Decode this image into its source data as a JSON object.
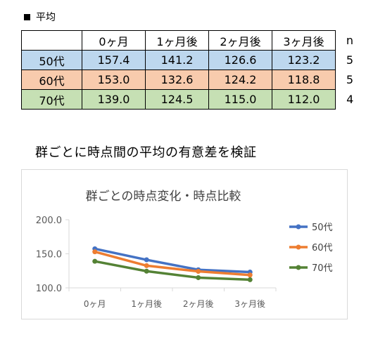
{
  "section_title": "平均",
  "table": {
    "columns": [
      "0ヶ月",
      "1ヶ月後",
      "2ヶ月後",
      "3ヶ月後"
    ],
    "n_header": "n",
    "rows": [
      {
        "label": "50代",
        "values": [
          "157.4",
          "141.2",
          "126.6",
          "123.2"
        ],
        "n": "5"
      },
      {
        "label": "60代",
        "values": [
          "153.0",
          "132.6",
          "124.2",
          "118.8"
        ],
        "n": "5"
      },
      {
        "label": "70代",
        "values": [
          "139.0",
          "124.5",
          "115.0",
          "112.0"
        ],
        "n": "4"
      }
    ]
  },
  "subheading": "群ごとに時点間の平均の有意差を検証",
  "colors": {
    "50代": "#4472c4",
    "60代": "#ed7d31",
    "70代": "#548235"
  },
  "chart_data": {
    "type": "line",
    "title": "群ごとの時点変化・時点比較",
    "categories": [
      "0ヶ月",
      "1ヶ月後",
      "2ヶ月後",
      "3ヶ月後"
    ],
    "ytick_labels": [
      "100.0",
      "150.0",
      "200.0"
    ],
    "ylim": [
      100,
      200
    ],
    "grid": false,
    "legend": "right",
    "series": [
      {
        "name": "50代",
        "values": [
          157.4,
          141.2,
          126.6,
          123.2
        ]
      },
      {
        "name": "60代",
        "values": [
          153.0,
          132.6,
          124.2,
          118.8
        ]
      },
      {
        "name": "70代",
        "values": [
          139.0,
          124.5,
          115.0,
          112.0
        ]
      }
    ]
  }
}
